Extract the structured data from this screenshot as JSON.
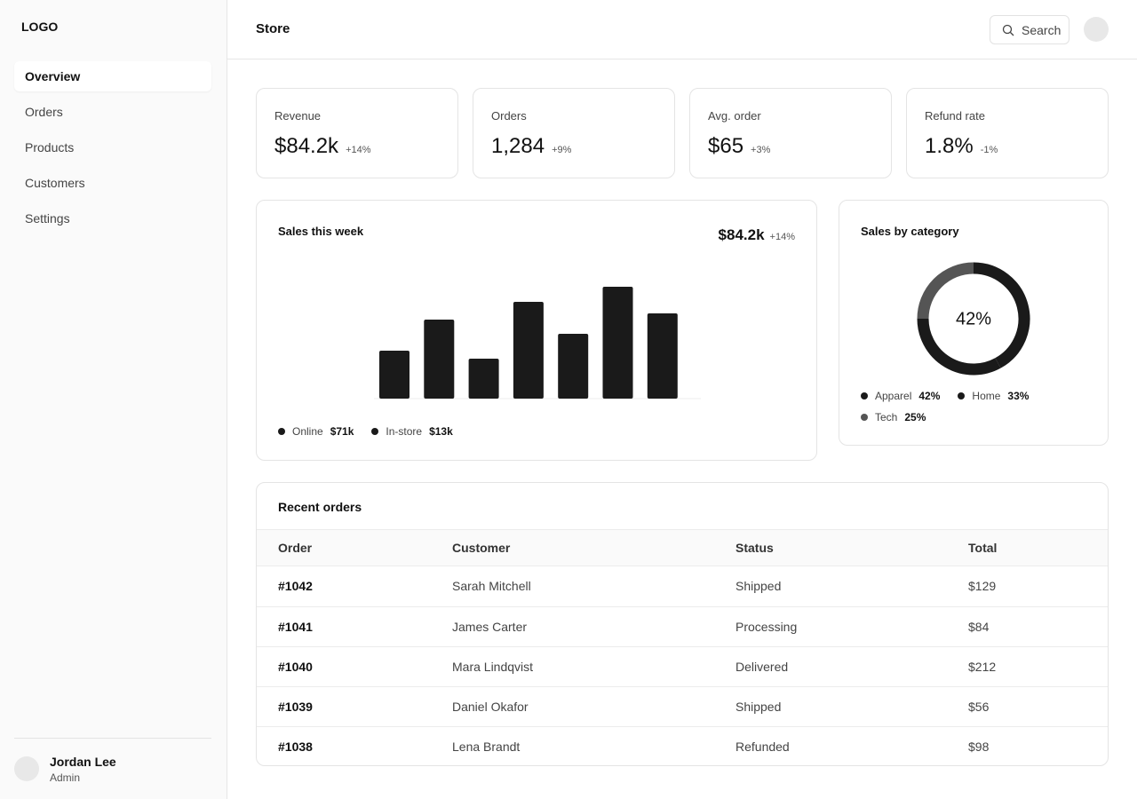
{
  "sidebar": {
    "logo": "LOGO",
    "nav": [
      "Overview",
      "Orders",
      "Products",
      "Customers",
      "Settings"
    ],
    "user": {
      "name": "Jordan Lee",
      "role": "Admin"
    }
  },
  "header": {
    "title": "Store",
    "search": "Search"
  },
  "kpis": [
    {
      "label": "Revenue",
      "value": "$84.2k",
      "change": "+14%"
    },
    {
      "label": "Orders",
      "value": "1,284",
      "change": "+9%"
    },
    {
      "label": "Avg. order",
      "value": "$65",
      "change": "+3%"
    },
    {
      "label": "Refund rate",
      "value": "1.8%",
      "change": "-1%"
    }
  ],
  "sales_week": {
    "title": "Sales this week",
    "total": "$84.2k",
    "change": "+14%",
    "values": [
      54,
      89,
      45,
      109,
      73,
      126,
      96
    ],
    "color": "#1a1a1a",
    "legend": [
      {
        "name": "Online",
        "value": "$71k",
        "color": "#1a1a1a"
      },
      {
        "name": "In-store",
        "value": "$13k",
        "color": "#1a1a1a"
      }
    ]
  },
  "sales_category": {
    "title": "Sales by category",
    "categories": [
      "Apparel",
      "Home",
      "Tech"
    ],
    "values": [
      42,
      33,
      25
    ],
    "value_labels": [
      "42%",
      "33%",
      "25%"
    ],
    "colors": [
      "#1a1a1a",
      "#1a1a1a",
      "#555555"
    ]
  },
  "orders": {
    "title": "Recent orders",
    "columns": [
      "Order",
      "Customer",
      "Status",
      "Total"
    ],
    "rows": [
      [
        "#1042",
        "Sarah Mitchell",
        "Shipped",
        "$129"
      ],
      [
        "#1041",
        "James Carter",
        "Processing",
        "$84"
      ],
      [
        "#1040",
        "Mara Lindqvist",
        "Delivered",
        "$212"
      ],
      [
        "#1039",
        "Daniel Okafor",
        "Shipped",
        "$56"
      ],
      [
        "#1038",
        "Lena Brandt",
        "Refunded",
        "$98"
      ]
    ]
  }
}
